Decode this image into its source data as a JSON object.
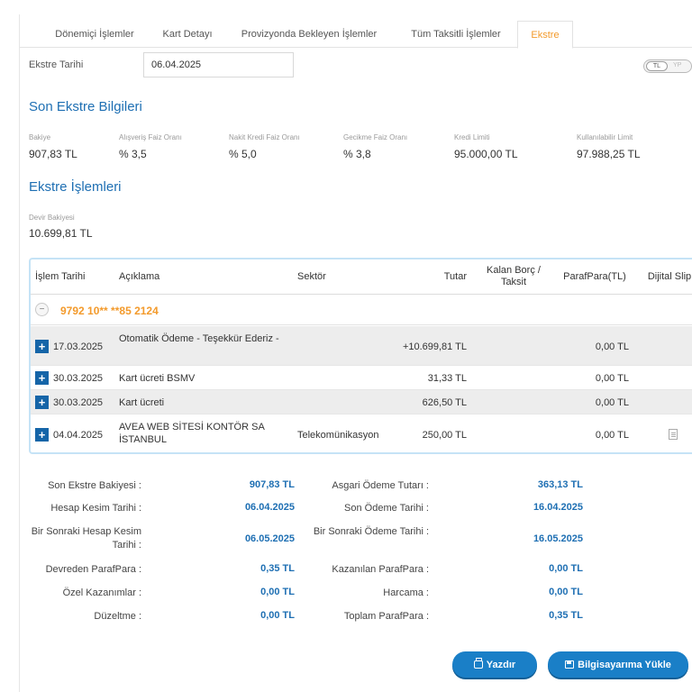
{
  "tabs": [
    {
      "label": "Dönemiçi İşlemler"
    },
    {
      "label": "Kart Detayı"
    },
    {
      "label": "Provizyonda Bekleyen İşlemler"
    },
    {
      "label": "Tüm Taksitli İşlemler"
    },
    {
      "label": "Ekstre"
    }
  ],
  "date_filter": {
    "label": "Ekstre Tarihi",
    "value": "06.04.2025"
  },
  "currency_toggle": {
    "on": "TL",
    "off": "YP"
  },
  "last_statement": {
    "title": "Son Ekstre Bilgileri",
    "items": [
      {
        "label": "Bakiye",
        "value": "907,83 TL"
      },
      {
        "label": "Alışveriş Faiz Oranı",
        "value": "% 3,5"
      },
      {
        "label": "Nakit Kredi Faiz Oranı",
        "value": "% 5,0"
      },
      {
        "label": "Gecikme Faiz Oranı",
        "value": "% 3,8"
      },
      {
        "label": "Kredi Limiti",
        "value": "95.000,00 TL"
      },
      {
        "label": "Kullanılabilir Limit",
        "value": "97.988,25 TL"
      }
    ]
  },
  "transactions_section": {
    "title": "Ekstre İşlemleri",
    "carry_over_label": "Devir Bakiyesi",
    "carry_over_value": "10.699,81 TL"
  },
  "table": {
    "headers": {
      "date": "İşlem Tarihi",
      "description": "Açıklama",
      "sector": "Sektör",
      "amount": "Tutar",
      "remaining": "Kalan Borç / Taksit",
      "parafpara": "ParafPara(TL)",
      "slip": "Dijital Slip"
    },
    "card_number": "9792 10** **85 2124",
    "rows": [
      {
        "date": "17.03.2025",
        "description": "Otomatik Ödeme - Teşekkür Ederiz -",
        "sector": "",
        "amount": "+10.699,81 TL",
        "remaining": "",
        "parafpara": "0,00 TL"
      },
      {
        "date": "30.03.2025",
        "description": "Kart ücreti BSMV",
        "sector": "",
        "amount": "31,33 TL",
        "remaining": "",
        "parafpara": "0,00 TL"
      },
      {
        "date": "30.03.2025",
        "description": "Kart ücreti",
        "sector": "",
        "amount": "626,50 TL",
        "remaining": "",
        "parafpara": "0,00 TL"
      },
      {
        "date": "04.04.2025",
        "description": "AVEA WEB SİTESİ KONTÖR SA İSTANBUL",
        "sector": "Telekomünikasyon",
        "amount": "250,00 TL",
        "remaining": "",
        "parafpara": "0,00 TL"
      }
    ]
  },
  "summary": {
    "left": [
      {
        "label": "Son Ekstre Bakiyesi :",
        "value": "907,83 TL"
      },
      {
        "label": "Hesap Kesim Tarihi :",
        "value": "06.04.2025"
      },
      {
        "label": "Bir Sonraki Hesap Kesim Tarihi :",
        "value": "06.05.2025"
      },
      {
        "label": "Devreden ParafPara :",
        "value": "0,35 TL"
      },
      {
        "label": "Özel Kazanımlar :",
        "value": "0,00 TL"
      },
      {
        "label": "Düzeltme :",
        "value": "0,00 TL"
      }
    ],
    "right": [
      {
        "label": "Asgari Ödeme Tutarı :",
        "value": "363,13 TL"
      },
      {
        "label": "Son Ödeme Tarihi :",
        "value": "16.04.2025"
      },
      {
        "label": "Bir Sonraki Ödeme Tarihi :",
        "value": "16.05.2025"
      },
      {
        "label": "Kazanılan ParafPara :",
        "value": "0,00 TL"
      },
      {
        "label": "Harcama :",
        "value": "0,00 TL"
      },
      {
        "label": "Toplam ParafPara :",
        "value": "0,35 TL"
      }
    ]
  },
  "buttons": {
    "print": "Yazdır",
    "download": "Bilgisayarıma Yükle"
  },
  "colors": {
    "accent": "#1e6fb3",
    "active_tab": "#f39a2b",
    "button": "#1a7fc7"
  }
}
